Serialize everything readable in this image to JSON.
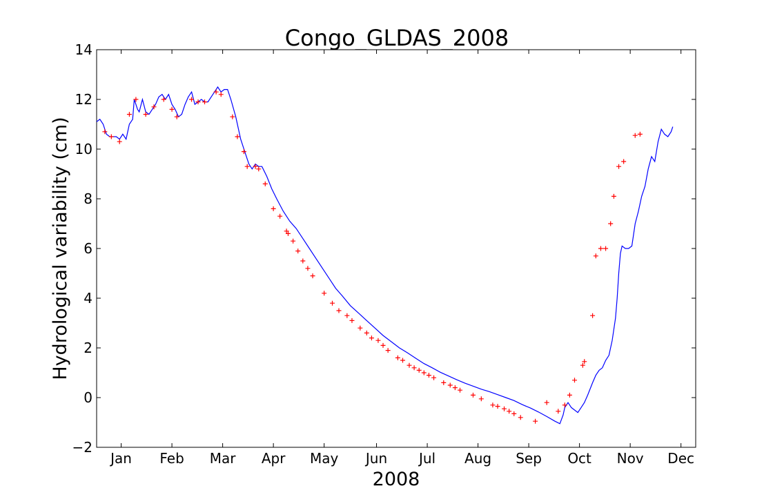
{
  "chart_data": {
    "type": "line",
    "title": "Congo_GLDAS_2008",
    "xlabel": "2008",
    "ylabel": "Hydrological variability (cm)",
    "ylim": [
      -2,
      14
    ],
    "xlim_days": [
      0,
      366
    ],
    "yticks": [
      -2,
      0,
      2,
      4,
      6,
      8,
      10,
      12,
      14
    ],
    "ytick_labels": [
      "−2",
      "0",
      "2",
      "4",
      "6",
      "8",
      "10",
      "12",
      "14"
    ],
    "months": [
      {
        "label": "Jan",
        "day": 15
      },
      {
        "label": "Feb",
        "day": 46
      },
      {
        "label": "Mar",
        "day": 77
      },
      {
        "label": "Apr",
        "day": 108
      },
      {
        "label": "May",
        "day": 139
      },
      {
        "label": "Jun",
        "day": 171
      },
      {
        "label": "Jul",
        "day": 202
      },
      {
        "label": "Aug",
        "day": 233
      },
      {
        "label": "Sep",
        "day": 264
      },
      {
        "label": "Oct",
        "day": 295
      },
      {
        "label": "Nov",
        "day": 326
      },
      {
        "label": "Dec",
        "day": 357
      }
    ],
    "grid": false,
    "series": [
      {
        "color": "#0000ff",
        "style": "line",
        "points": [
          [
            0,
            11.1
          ],
          [
            2,
            11.2
          ],
          [
            4,
            11.0
          ],
          [
            6,
            10.6
          ],
          [
            8,
            10.5
          ],
          [
            10,
            10.5
          ],
          [
            12,
            10.5
          ],
          [
            14,
            10.4
          ],
          [
            16,
            10.6
          ],
          [
            18,
            10.4
          ],
          [
            20,
            11.0
          ],
          [
            22,
            11.2
          ],
          [
            23,
            12.0
          ],
          [
            25,
            11.6
          ],
          [
            26,
            11.5
          ],
          [
            28,
            12.0
          ],
          [
            30,
            11.5
          ],
          [
            32,
            11.4
          ],
          [
            34,
            11.6
          ],
          [
            36,
            11.8
          ],
          [
            38,
            12.1
          ],
          [
            40,
            12.2
          ],
          [
            42,
            12.0
          ],
          [
            44,
            12.2
          ],
          [
            46,
            11.8
          ],
          [
            48,
            11.6
          ],
          [
            50,
            11.3
          ],
          [
            52,
            11.4
          ],
          [
            54,
            11.8
          ],
          [
            56,
            12.1
          ],
          [
            58,
            12.3
          ],
          [
            60,
            11.8
          ],
          [
            62,
            11.9
          ],
          [
            64,
            12.0
          ],
          [
            66,
            11.9
          ],
          [
            68,
            11.9
          ],
          [
            70,
            12.1
          ],
          [
            72,
            12.3
          ],
          [
            74,
            12.5
          ],
          [
            76,
            12.3
          ],
          [
            78,
            12.4
          ],
          [
            80,
            12.4
          ],
          [
            82,
            12.0
          ],
          [
            85,
            11.3
          ],
          [
            88,
            10.4
          ],
          [
            91,
            9.8
          ],
          [
            93,
            9.4
          ],
          [
            95,
            9.2
          ],
          [
            97,
            9.4
          ],
          [
            99,
            9.3
          ],
          [
            101,
            9.3
          ],
          [
            104,
            8.9
          ],
          [
            107,
            8.4
          ],
          [
            110,
            8.0
          ],
          [
            114,
            7.5
          ],
          [
            118,
            7.1
          ],
          [
            122,
            6.8
          ],
          [
            126,
            6.4
          ],
          [
            130,
            6.0
          ],
          [
            134,
            5.6
          ],
          [
            138,
            5.2
          ],
          [
            142,
            4.8
          ],
          [
            146,
            4.4
          ],
          [
            150,
            4.1
          ],
          [
            155,
            3.7
          ],
          [
            160,
            3.4
          ],
          [
            165,
            3.1
          ],
          [
            170,
            2.8
          ],
          [
            175,
            2.5
          ],
          [
            180,
            2.25
          ],
          [
            185,
            2.0
          ],
          [
            190,
            1.8
          ],
          [
            195,
            1.58
          ],
          [
            200,
            1.37
          ],
          [
            205,
            1.2
          ],
          [
            210,
            1.02
          ],
          [
            215,
            0.87
          ],
          [
            220,
            0.72
          ],
          [
            225,
            0.58
          ],
          [
            230,
            0.46
          ],
          [
            235,
            0.34
          ],
          [
            240,
            0.24
          ],
          [
            245,
            0.12
          ],
          [
            250,
            0.0
          ],
          [
            255,
            -0.12
          ],
          [
            260,
            -0.28
          ],
          [
            265,
            -0.42
          ],
          [
            270,
            -0.58
          ],
          [
            275,
            -0.76
          ],
          [
            280,
            -0.95
          ],
          [
            283,
            -1.05
          ],
          [
            285,
            -0.7
          ],
          [
            286,
            -0.4
          ],
          [
            288,
            -0.2
          ],
          [
            290,
            -0.4
          ],
          [
            292,
            -0.5
          ],
          [
            294,
            -0.6
          ],
          [
            296,
            -0.4
          ],
          [
            298,
            -0.2
          ],
          [
            300,
            0.1
          ],
          [
            303,
            0.6
          ],
          [
            305,
            0.9
          ],
          [
            307,
            1.1
          ],
          [
            309,
            1.2
          ],
          [
            311,
            1.5
          ],
          [
            313,
            1.7
          ],
          [
            315,
            2.3
          ],
          [
            317,
            3.2
          ],
          [
            318,
            4.0
          ],
          [
            319,
            5.0
          ],
          [
            320,
            5.8
          ],
          [
            321,
            6.1
          ],
          [
            323,
            6.0
          ],
          [
            325,
            6.0
          ],
          [
            327,
            6.1
          ],
          [
            329,
            7.0
          ],
          [
            331,
            7.5
          ],
          [
            333,
            8.1
          ],
          [
            335,
            8.5
          ],
          [
            337,
            9.2
          ],
          [
            339,
            9.7
          ],
          [
            341,
            9.5
          ],
          [
            343,
            10.3
          ],
          [
            345,
            10.8
          ],
          [
            347,
            10.6
          ],
          [
            349,
            10.5
          ],
          [
            351,
            10.7
          ],
          [
            352,
            10.9
          ]
        ]
      },
      {
        "color": "#ff0000",
        "style": "markers",
        "marker": "+",
        "points": [
          [
            5,
            10.7
          ],
          [
            9,
            10.5
          ],
          [
            14,
            10.3
          ],
          [
            20,
            11.4
          ],
          [
            24,
            12.0
          ],
          [
            30,
            11.4
          ],
          [
            35,
            11.7
          ],
          [
            41,
            12.0
          ],
          [
            46,
            11.6
          ],
          [
            49,
            11.3
          ],
          [
            58,
            12.0
          ],
          [
            62,
            11.9
          ],
          [
            66,
            11.9
          ],
          [
            73,
            12.3
          ],
          [
            76,
            12.2
          ],
          [
            83,
            11.3
          ],
          [
            86,
            10.5
          ],
          [
            90,
            9.9
          ],
          [
            92,
            9.3
          ],
          [
            97,
            9.3
          ],
          [
            99,
            9.2
          ],
          [
            103,
            8.6
          ],
          [
            108,
            7.6
          ],
          [
            112,
            7.3
          ],
          [
            116,
            6.7
          ],
          [
            117,
            6.6
          ],
          [
            120,
            6.3
          ],
          [
            123,
            5.9
          ],
          [
            126,
            5.5
          ],
          [
            129,
            5.2
          ],
          [
            132,
            4.9
          ],
          [
            139,
            4.2
          ],
          [
            144,
            3.8
          ],
          [
            148,
            3.5
          ],
          [
            153,
            3.3
          ],
          [
            156,
            3.1
          ],
          [
            161,
            2.8
          ],
          [
            165,
            2.6
          ],
          [
            168,
            2.4
          ],
          [
            172,
            2.3
          ],
          [
            175,
            2.1
          ],
          [
            178,
            1.9
          ],
          [
            184,
            1.6
          ],
          [
            187,
            1.5
          ],
          [
            191,
            1.3
          ],
          [
            194,
            1.2
          ],
          [
            197,
            1.1
          ],
          [
            200,
            1.0
          ],
          [
            203,
            0.9
          ],
          [
            206,
            0.8
          ],
          [
            212,
            0.6
          ],
          [
            216,
            0.5
          ],
          [
            219,
            0.4
          ],
          [
            222,
            0.3
          ],
          [
            230,
            0.1
          ],
          [
            235,
            -0.05
          ],
          [
            242,
            -0.3
          ],
          [
            245,
            -0.35
          ],
          [
            249,
            -0.45
          ],
          [
            252,
            -0.55
          ],
          [
            255,
            -0.65
          ],
          [
            259,
            -0.8
          ],
          [
            268,
            -0.95
          ],
          [
            275,
            -0.2
          ],
          [
            282,
            -0.55
          ],
          [
            286,
            -0.3
          ],
          [
            289,
            0.1
          ],
          [
            292,
            0.7
          ],
          [
            297,
            1.3
          ],
          [
            298,
            1.45
          ],
          [
            303,
            3.3
          ],
          [
            305,
            5.7
          ],
          [
            308,
            6.0
          ],
          [
            311,
            6.0
          ],
          [
            314,
            7.0
          ],
          [
            316,
            8.1
          ],
          [
            319,
            9.3
          ],
          [
            322,
            9.5
          ],
          [
            329,
            10.55
          ],
          [
            332,
            10.6
          ]
        ]
      }
    ]
  }
}
